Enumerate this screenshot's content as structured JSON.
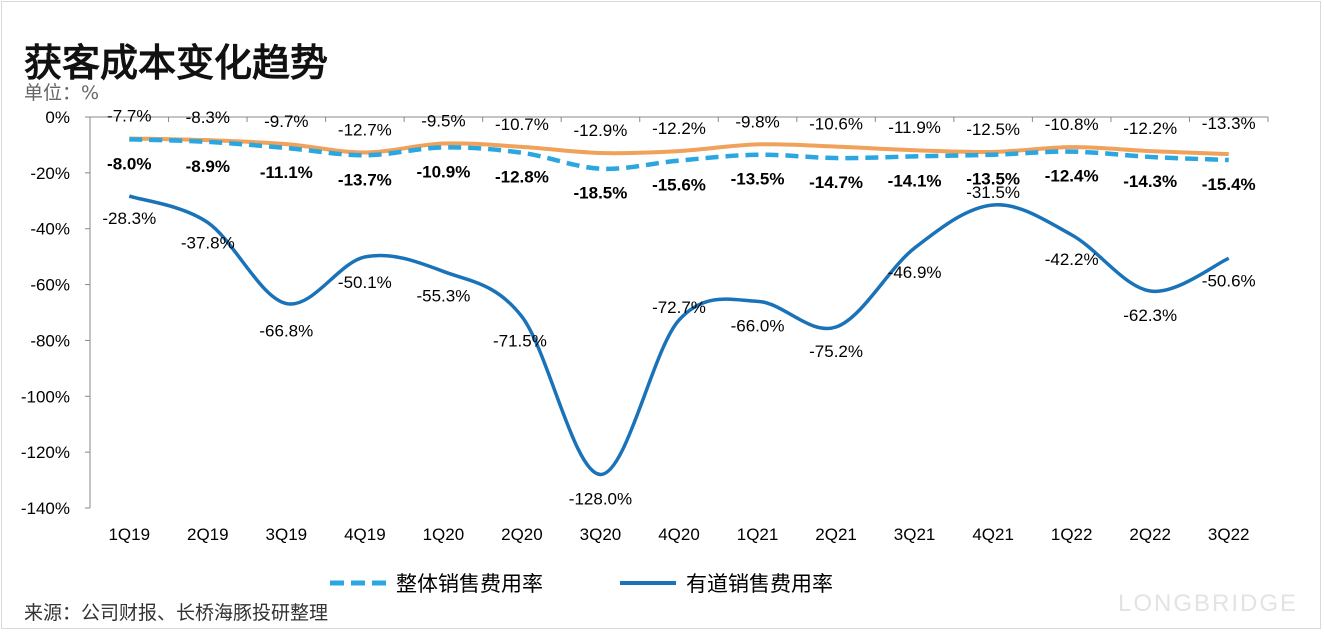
{
  "title": "获客成本变化趋势",
  "unit_label": "单位：%",
  "source": "来源：公司财报、长桥海豚投研整理",
  "brand": "LONGBRIDGE",
  "colors": {
    "overall": "#2aa7e0",
    "youdao": "#1a73b8",
    "orange": "#f0a15a",
    "axis": "#888888"
  },
  "chart_data": {
    "type": "line",
    "categories": [
      "1Q19",
      "2Q19",
      "3Q19",
      "4Q19",
      "1Q20",
      "2Q20",
      "3Q20",
      "4Q20",
      "1Q21",
      "2Q21",
      "3Q21",
      "4Q21",
      "1Q22",
      "2Q22",
      "3Q22"
    ],
    "ylim": [
      -140,
      0
    ],
    "yticks": [
      0,
      -20,
      -40,
      -60,
      -80,
      -100,
      -120,
      -140
    ],
    "ytick_labels": [
      "0%",
      "-20%",
      "-40%",
      "-60%",
      "-80%",
      "-100%",
      "-120%",
      "-140%"
    ],
    "series": [
      {
        "name": "整体销售费用率",
        "style": "dashed",
        "values": [
          -8.0,
          -8.9,
          -11.1,
          -13.7,
          -10.9,
          -12.8,
          -18.5,
          -15.6,
          -13.5,
          -14.7,
          -14.1,
          -13.5,
          -12.4,
          -14.3,
          -15.4
        ],
        "labels": [
          "-8.0%",
          "-8.9%",
          "-11.1%",
          "-13.7%",
          "-10.9%",
          "-12.8%",
          "-18.5%",
          "-15.6%",
          "-13.5%",
          "-14.7%",
          "-14.1%",
          "-13.5%",
          "-12.4%",
          "-14.3%",
          "-15.4%"
        ]
      },
      {
        "name": "",
        "style": "solid",
        "values": [
          -7.7,
          -8.3,
          -9.7,
          -12.7,
          -9.5,
          -10.7,
          -12.9,
          -12.2,
          -9.8,
          -10.6,
          -11.9,
          -12.5,
          -10.8,
          -12.2,
          -13.3
        ],
        "labels": [
          "-7.7%",
          "-8.3%",
          "-9.7%",
          "-12.7%",
          "-9.5%",
          "-10.7%",
          "-12.9%",
          "-12.2%",
          "-9.8%",
          "-10.6%",
          "-11.9%",
          "-12.5%",
          "-10.8%",
          "-12.2%",
          "-13.3%"
        ]
      },
      {
        "name": "有道销售费用率",
        "style": "solid",
        "values": [
          -28.3,
          -37.8,
          -66.8,
          -50.1,
          -55.3,
          -71.5,
          -128.0,
          -72.7,
          -66.0,
          -75.2,
          -46.9,
          -31.5,
          -42.2,
          -62.3,
          -50.6
        ],
        "labels": [
          "-28.3%",
          "-37.8%",
          "-66.8%",
          "-50.1%",
          "-55.3%",
          "-71.5%",
          "-128.0%",
          "-72.7%",
          "-66.0%",
          "-75.2%",
          "-46.9%",
          "-31.5%",
          "-42.2%",
          "-62.3%",
          "-50.6%"
        ]
      }
    ],
    "legend": [
      "整体销售费用率",
      "有道销售费用率"
    ]
  }
}
